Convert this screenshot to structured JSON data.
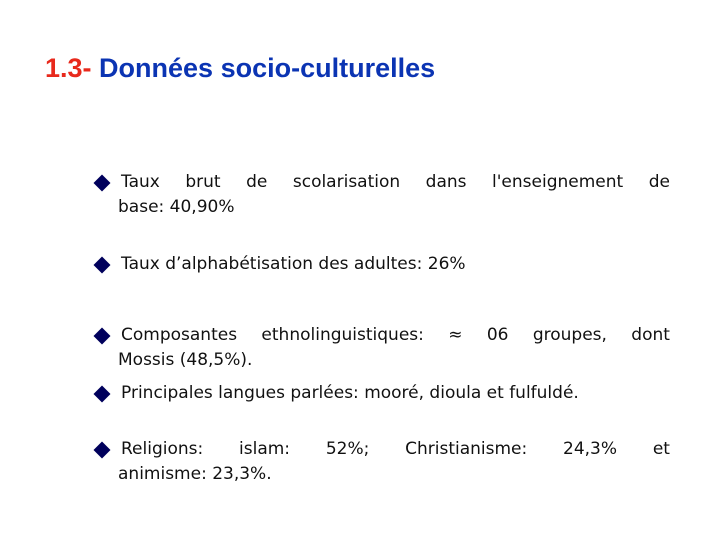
{
  "title": {
    "number": "1.3-",
    "text": "Données socio-culturelles"
  },
  "bullets": [
    {
      "words": [
        "Taux",
        "brut",
        "de",
        "scolarisation",
        "dans",
        "l'enseignement",
        "de"
      ],
      "cont": "base: 40,90%"
    },
    {
      "line": "Taux d’alphabétisation des adultes: 26%"
    },
    {
      "words": [
        "Composantes",
        "ethnolinguistiques:",
        "≈",
        "06",
        "groupes,",
        "dont"
      ],
      "cont": "Mossis (48,5%)."
    },
    {
      "line": "Principales langues parlées: mooré, dioula et fulfuldé."
    },
    {
      "words": [
        "Religions:",
        "islam:",
        "52%;",
        "Christianisme:",
        "24,3%",
        "et"
      ],
      "cont": "animisme: 23,3%."
    }
  ],
  "colors": {
    "title_number": "#e8291c",
    "title_text": "#0b34b3",
    "bullet": "#00005c",
    "body_text": "#111111"
  },
  "icons": {
    "bullet": "diamond-bullet-icon"
  }
}
